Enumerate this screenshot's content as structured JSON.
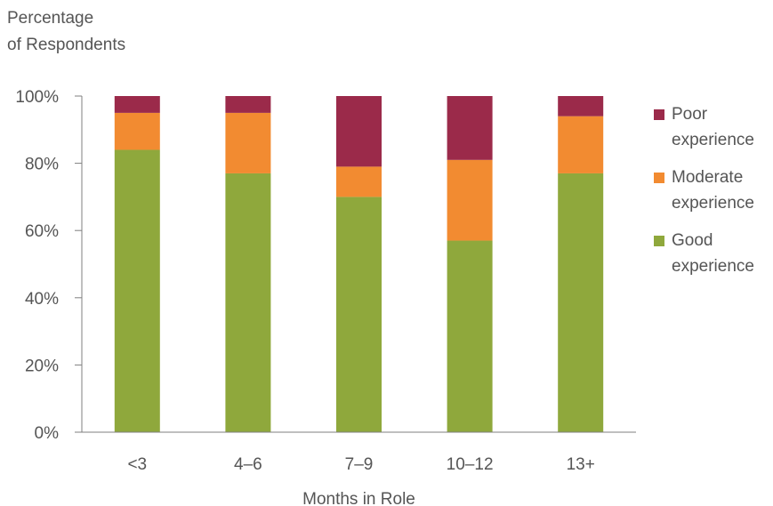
{
  "chart_data": {
    "type": "bar",
    "stacked": true,
    "ylabel": "Percentage of Respondents",
    "ylabel_lines": [
      "Percentage",
      "of Respondents"
    ],
    "xlabel": "Months in Role",
    "categories": [
      "<3",
      "4–6",
      "7–9",
      "10–12",
      "13+"
    ],
    "ylim": [
      0,
      100
    ],
    "yticks": [
      "0%",
      "20%",
      "40%",
      "60%",
      "80%",
      "100%"
    ],
    "legend_position": "right",
    "series": [
      {
        "name": "Good experience",
        "legend_lines": [
          "Good",
          "experience"
        ],
        "color": "#8fa83c",
        "values": [
          84,
          77,
          70,
          57,
          77
        ]
      },
      {
        "name": "Moderate experience",
        "legend_lines": [
          "Moderate",
          "experience"
        ],
        "color": "#f28b31",
        "values": [
          11,
          18,
          9,
          24,
          17
        ]
      },
      {
        "name": "Poor experience",
        "legend_lines": [
          "Poor",
          "experience"
        ],
        "color": "#9b2a4a",
        "values": [
          5,
          5,
          21,
          19,
          6
        ]
      }
    ]
  }
}
